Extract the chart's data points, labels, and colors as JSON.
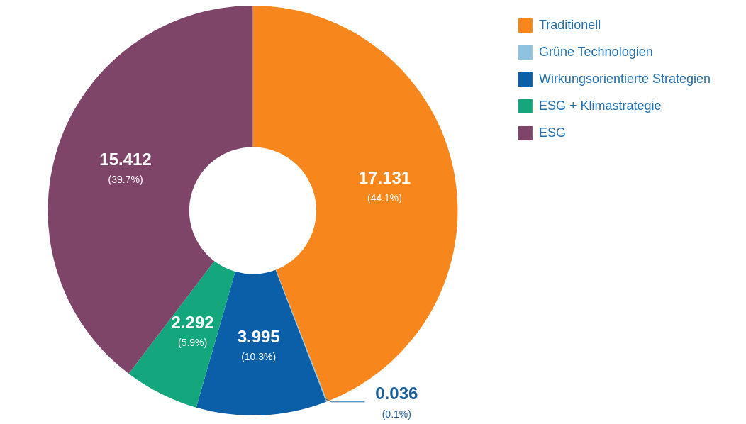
{
  "chart_data": {
    "type": "donut",
    "categories": [
      "Traditionell",
      "Grüne Technologien",
      "Wirkungsorientierte Strategien",
      "ESG + Klimastrategie",
      "ESG"
    ],
    "values": [
      17.131,
      0.036,
      3.995,
      2.292,
      15.412
    ],
    "colors": [
      "#f7861c",
      "#8ec3e0",
      "#0b5ea8",
      "#14a67d",
      "#7e4569"
    ],
    "value_labels": [
      "17.131\n(44.1%)",
      "0.036\n(0.1%)",
      "3.995\n(10.3%)",
      "2.292\n(5.9%)",
      "15.412\n(39.7%)"
    ],
    "legend": "right"
  }
}
